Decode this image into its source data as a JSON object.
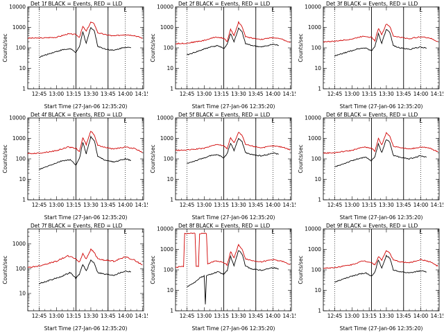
{
  "chart_data": [
    {
      "type": "line",
      "title": "Det 1f BLACK = Events, RED = LLD",
      "ylabel": "Counts/sec",
      "xlabel": "Start Time (27-Jan-06 12:35:20)",
      "marker": "L",
      "x_ticks": [
        "12:45",
        "13:00",
        "13:15",
        "13:30",
        "13:45",
        "14:00",
        "14:15"
      ],
      "y_ticks": [
        "1",
        "10",
        "100",
        "1000",
        "10000"
      ],
      "yscale": "log",
      "ylim": [
        1,
        10000
      ],
      "xlim": [
        "12:35",
        "14:16"
      ],
      "dotted_lines": [
        "12:45",
        "14:00"
      ],
      "solid_lines": [
        "13:17",
        "13:45"
      ],
      "series": [
        {
          "name": "RED",
          "color": "#d00000",
          "x": [
            "12:35",
            "12:45",
            "13:00",
            "13:10",
            "13:17",
            "13:20",
            "13:23",
            "13:26",
            "13:30",
            "13:33",
            "13:36",
            "13:42",
            "13:50",
            "14:00",
            "14:08",
            "14:15"
          ],
          "values": [
            300,
            300,
            330,
            480,
            450,
            330,
            1100,
            650,
            1800,
            1500,
            550,
            450,
            380,
            450,
            400,
            300
          ]
        },
        {
          "name": "BLACK",
          "color": "#000000",
          "x": [
            "12:45",
            "12:55",
            "13:05",
            "13:12",
            "13:17",
            "13:20",
            "13:23",
            "13:26",
            "13:30",
            "13:33",
            "13:36",
            "13:42",
            "13:50",
            "14:00",
            "14:05"
          ],
          "values": [
            35,
            55,
            80,
            90,
            60,
            110,
            600,
            170,
            1000,
            700,
            120,
            90,
            75,
            110,
            100
          ]
        }
      ]
    },
    {
      "type": "line",
      "title": "Det 2f BLACK = Events, RED = LLD",
      "ylabel": "Counts/sec",
      "xlabel": "Start Time (27-Jan-06 12:35:20)",
      "marker": "L",
      "x_ticks": [
        "12:45",
        "13:00",
        "13:15",
        "13:30",
        "13:45",
        "14:00",
        "14:15"
      ],
      "y_ticks": [
        "1",
        "10",
        "100",
        "1000",
        "10000"
      ],
      "yscale": "log",
      "ylim": [
        1,
        10000
      ],
      "xlim": [
        "12:35",
        "14:16"
      ],
      "dotted_lines": [
        "12:45",
        "14:00"
      ],
      "solid_lines": [
        "13:17",
        "13:45"
      ],
      "series": [
        {
          "name": "RED",
          "color": "#d00000",
          "x": [
            "12:35",
            "12:45",
            "13:00",
            "13:10",
            "13:17",
            "13:20",
            "13:23",
            "13:26",
            "13:30",
            "13:33",
            "13:36",
            "13:42",
            "13:50",
            "14:00",
            "14:08",
            "14:15"
          ],
          "values": [
            160,
            170,
            230,
            340,
            300,
            200,
            800,
            400,
            1800,
            1100,
            350,
            300,
            260,
            320,
            260,
            180
          ]
        },
        {
          "name": "BLACK",
          "color": "#000000",
          "x": [
            "12:45",
            "12:55",
            "13:05",
            "13:12",
            "13:17",
            "13:20",
            "13:23",
            "13:26",
            "13:30",
            "13:33",
            "13:36",
            "13:42",
            "13:50",
            "14:00",
            "14:05"
          ],
          "values": [
            45,
            70,
            110,
            130,
            90,
            150,
            500,
            200,
            900,
            600,
            160,
            130,
            110,
            150,
            130
          ]
        }
      ]
    },
    {
      "type": "line",
      "title": "Det 3f BLACK = Events, RED = LLD",
      "ylabel": "Counts/sec",
      "xlabel": "Start Time (27-Jan-06 12:35:20)",
      "marker": "L",
      "x_ticks": [
        "12:45",
        "13:00",
        "13:15",
        "13:30",
        "13:45",
        "14:00",
        "14:15"
      ],
      "y_ticks": [
        "1",
        "10",
        "100",
        "1000",
        "10000"
      ],
      "yscale": "log",
      "ylim": [
        1,
        10000
      ],
      "xlim": [
        "12:35",
        "14:16"
      ],
      "dotted_lines": [
        "12:45",
        "14:00"
      ],
      "solid_lines": [
        "13:17",
        "13:45"
      ],
      "series": [
        {
          "name": "RED",
          "color": "#d00000",
          "x": [
            "12:35",
            "12:45",
            "13:00",
            "13:10",
            "13:17",
            "13:20",
            "13:23",
            "13:26",
            "13:30",
            "13:33",
            "13:36",
            "13:42",
            "13:50",
            "14:00",
            "14:08",
            "14:15"
          ],
          "values": [
            200,
            210,
            270,
            380,
            330,
            220,
            900,
            450,
            1500,
            1100,
            380,
            330,
            280,
            350,
            300,
            200
          ]
        },
        {
          "name": "BLACK",
          "color": "#000000",
          "x": [
            "12:45",
            "12:55",
            "13:05",
            "13:12",
            "13:17",
            "13:20",
            "13:23",
            "13:26",
            "13:30",
            "13:33",
            "13:36",
            "13:42",
            "13:50",
            "14:00",
            "14:05"
          ],
          "values": [
            40,
            60,
            90,
            100,
            70,
            120,
            500,
            170,
            800,
            550,
            130,
            100,
            85,
            110,
            95
          ]
        }
      ]
    },
    {
      "type": "line",
      "title": "Det 4f BLACK = Events, RED = LLD",
      "ylabel": "Counts/sec",
      "xlabel": "Start Time (27-Jan-06 12:35:20)",
      "marker": "L",
      "x_ticks": [
        "12:45",
        "13:00",
        "13:15",
        "13:30",
        "13:45",
        "14:00",
        "14:15"
      ],
      "y_ticks": [
        "1",
        "10",
        "100",
        "1000",
        "10000"
      ],
      "yscale": "log",
      "ylim": [
        1,
        10000
      ],
      "xlim": [
        "12:35",
        "14:16"
      ],
      "dotted_lines": [
        "12:45",
        "14:00"
      ],
      "solid_lines": [
        "13:17",
        "13:45"
      ],
      "series": [
        {
          "name": "RED",
          "color": "#d00000",
          "x": [
            "12:35",
            "12:45",
            "13:00",
            "13:10",
            "13:17",
            "13:20",
            "13:23",
            "13:26",
            "13:30",
            "13:33",
            "13:36",
            "13:42",
            "13:50",
            "14:00",
            "14:08",
            "14:15"
          ],
          "values": [
            180,
            190,
            250,
            380,
            330,
            220,
            1100,
            500,
            2300,
            1500,
            450,
            380,
            300,
            380,
            320,
            210
          ]
        },
        {
          "name": "BLACK",
          "color": "#000000",
          "x": [
            "12:45",
            "12:55",
            "13:05",
            "13:12",
            "13:17",
            "13:20",
            "13:23",
            "13:26",
            "13:30",
            "13:33",
            "13:36",
            "13:42",
            "13:50",
            "14:00",
            "14:05"
          ],
          "values": [
            30,
            50,
            80,
            90,
            50,
            100,
            650,
            180,
            1200,
            800,
            130,
            90,
            70,
            100,
            85
          ]
        }
      ]
    },
    {
      "type": "line",
      "title": "Det 5f BLACK = Events, RED = LLD",
      "ylabel": "Counts/sec",
      "xlabel": "Start Time (27-Jan-06 12:35:20)",
      "marker": "L",
      "x_ticks": [
        "12:45",
        "13:00",
        "13:15",
        "13:30",
        "13:45",
        "14:00",
        "14:15"
      ],
      "y_ticks": [
        "1",
        "10",
        "100",
        "1000",
        "10000"
      ],
      "yscale": "log",
      "ylim": [
        1,
        10000
      ],
      "xlim": [
        "12:35",
        "14:16"
      ],
      "dotted_lines": [
        "12:45",
        "14:00"
      ],
      "solid_lines": [
        "13:17",
        "13:45"
      ],
      "series": [
        {
          "name": "RED",
          "color": "#d00000",
          "x": [
            "12:35",
            "12:45",
            "13:00",
            "13:10",
            "13:17",
            "13:20",
            "13:23",
            "13:26",
            "13:30",
            "13:33",
            "13:36",
            "13:42",
            "13:50",
            "14:00",
            "14:08",
            "14:15"
          ],
          "values": [
            260,
            270,
            330,
            500,
            450,
            320,
            1100,
            600,
            2000,
            1400,
            500,
            420,
            350,
            430,
            380,
            280
          ]
        },
        {
          "name": "BLACK",
          "color": "#000000",
          "x": [
            "12:45",
            "12:55",
            "13:05",
            "13:12",
            "13:17",
            "13:20",
            "13:23",
            "13:26",
            "13:30",
            "13:33",
            "13:36",
            "13:42",
            "13:50",
            "14:00",
            "14:05"
          ],
          "values": [
            60,
            90,
            140,
            160,
            110,
            180,
            600,
            260,
            1000,
            700,
            200,
            160,
            140,
            190,
            170
          ]
        }
      ]
    },
    {
      "type": "line",
      "title": "Det 6f BLACK = Events, RED = LLD",
      "ylabel": "Counts/sec",
      "xlabel": "Start Time (27-Jan-06 12:35:20)",
      "marker": "L",
      "x_ticks": [
        "12:45",
        "13:00",
        "13:15",
        "13:30",
        "13:45",
        "14:00",
        "14:15"
      ],
      "y_ticks": [
        "1",
        "10",
        "100",
        "1000",
        "10000"
      ],
      "yscale": "log",
      "ylim": [
        1,
        10000
      ],
      "xlim": [
        "12:35",
        "14:16"
      ],
      "dotted_lines": [
        "12:45",
        "14:00"
      ],
      "solid_lines": [
        "13:17",
        "13:45"
      ],
      "series": [
        {
          "name": "RED",
          "color": "#d00000",
          "x": [
            "12:35",
            "12:45",
            "13:00",
            "13:10",
            "13:17",
            "13:20",
            "13:23",
            "13:26",
            "13:30",
            "13:33",
            "13:36",
            "13:42",
            "13:50",
            "14:00",
            "14:08",
            "14:15"
          ],
          "values": [
            190,
            200,
            260,
            380,
            340,
            230,
            1000,
            480,
            1900,
            1300,
            420,
            360,
            300,
            380,
            330,
            220
          ]
        },
        {
          "name": "BLACK",
          "color": "#000000",
          "x": [
            "12:45",
            "12:55",
            "13:05",
            "13:12",
            "13:17",
            "13:20",
            "13:23",
            "13:26",
            "13:30",
            "13:33",
            "13:36",
            "13:42",
            "13:50",
            "14:00",
            "14:05"
          ],
          "values": [
            40,
            65,
            100,
            120,
            80,
            130,
            550,
            200,
            900,
            650,
            150,
            120,
            100,
            140,
            120
          ]
        }
      ]
    },
    {
      "type": "line",
      "title": "Det 7f BLACK = Events, RED = LLD",
      "ylabel": "Counts/sec",
      "xlabel": "Start Time (27-Jan-06 12:35:20)",
      "marker": "L",
      "x_ticks": [
        "12:45",
        "13:00",
        "13:15",
        "13:30",
        "13:45",
        "14:00",
        "14:15"
      ],
      "y_ticks": [
        "10",
        "100",
        "1000"
      ],
      "yscale": "log",
      "ylim": [
        2,
        4000
      ],
      "xlim": [
        "12:35",
        "14:16"
      ],
      "dotted_lines": [
        "12:45",
        "14:00"
      ],
      "solid_lines": [
        "13:17",
        "13:45"
      ],
      "series": [
        {
          "name": "RED",
          "color": "#d00000",
          "x": [
            "12:35",
            "12:45",
            "13:00",
            "13:10",
            "13:17",
            "13:20",
            "13:23",
            "13:26",
            "13:30",
            "13:33",
            "13:36",
            "13:42",
            "13:50",
            "14:00",
            "14:08",
            "14:15"
          ],
          "values": [
            110,
            130,
            200,
            330,
            250,
            180,
            400,
            250,
            600,
            450,
            250,
            220,
            200,
            300,
            220,
            140
          ]
        },
        {
          "name": "BLACK",
          "color": "#000000",
          "x": [
            "12:45",
            "12:55",
            "13:05",
            "13:12",
            "13:17",
            "13:20",
            "13:23",
            "13:26",
            "13:30",
            "13:33",
            "13:36",
            "13:42",
            "13:50",
            "14:00",
            "14:05"
          ],
          "values": [
            25,
            35,
            50,
            70,
            40,
            60,
            150,
            80,
            220,
            170,
            70,
            60,
            55,
            80,
            75
          ]
        }
      ]
    },
    {
      "type": "line",
      "title": "Det 8f BLACK = Events, RED = LLD",
      "ylabel": "Counts/sec",
      "xlabel": "Start Time (27-Jan-06 12:35:20)",
      "marker": "L",
      "x_ticks": [
        "12:45",
        "13:00",
        "13:15",
        "13:30",
        "13:45",
        "14:00",
        "14:15"
      ],
      "y_ticks": [
        "1",
        "10",
        "100",
        "1000",
        "10000"
      ],
      "yscale": "log",
      "ylim": [
        1,
        10000
      ],
      "xlim": [
        "12:35",
        "14:16"
      ],
      "dotted_lines": [
        "12:45",
        "14:00"
      ],
      "solid_lines": [
        "13:17",
        "13:45"
      ],
      "series": [
        {
          "name": "RED",
          "color": "#d00000",
          "x": [
            "12:35",
            "12:42",
            "12:43",
            "12:52",
            "12:53",
            "12:55",
            "12:56",
            "13:02",
            "13:03",
            "13:10",
            "13:17",
            "13:20",
            "13:23",
            "13:26",
            "13:30",
            "13:33",
            "13:36",
            "13:42",
            "13:50",
            "14:00",
            "14:08",
            "14:15"
          ],
          "values": [
            130,
            150,
            6000,
            6000,
            150,
            150,
            6000,
            6000,
            200,
            280,
            230,
            170,
            800,
            380,
            1700,
            1000,
            350,
            280,
            250,
            320,
            260,
            180
          ]
        },
        {
          "name": "BLACK",
          "color": "#000000",
          "x": [
            "12:45",
            "12:52",
            "12:56",
            "13:00",
            "13:01",
            "13:02",
            "13:05",
            "13:12",
            "13:17",
            "13:20",
            "13:23",
            "13:26",
            "13:30",
            "13:33",
            "13:36",
            "13:42",
            "13:50",
            "14:00",
            "14:05"
          ],
          "values": [
            15,
            25,
            40,
            50,
            2,
            50,
            60,
            80,
            60,
            90,
            450,
            160,
            900,
            600,
            150,
            110,
            95,
            130,
            110
          ]
        }
      ]
    },
    {
      "type": "line",
      "title": "Det 9f BLACK = Events, RED = LLD",
      "ylabel": "Counts/sec",
      "xlabel": "Start Time (27-Jan-06 12:35:20)",
      "marker": "L",
      "x_ticks": [
        "12:45",
        "13:00",
        "13:15",
        "13:30",
        "13:45",
        "14:00",
        "14:15"
      ],
      "y_ticks": [
        "1",
        "10",
        "100",
        "1000",
        "10000"
      ],
      "yscale": "log",
      "ylim": [
        1,
        10000
      ],
      "xlim": [
        "12:35",
        "14:16"
      ],
      "dotted_lines": [
        "12:45",
        "14:00"
      ],
      "solid_lines": [
        "13:17",
        "13:45"
      ],
      "series": [
        {
          "name": "RED",
          "color": "#d00000",
          "x": [
            "12:35",
            "12:45",
            "13:00",
            "13:10",
            "13:17",
            "13:20",
            "13:23",
            "13:26",
            "13:30",
            "13:33",
            "13:36",
            "13:42",
            "13:50",
            "14:00",
            "14:08",
            "14:15"
          ],
          "values": [
            120,
            130,
            180,
            280,
            230,
            170,
            450,
            300,
            900,
            650,
            300,
            250,
            220,
            320,
            250,
            150
          ]
        },
        {
          "name": "BLACK",
          "color": "#000000",
          "x": [
            "12:45",
            "12:55",
            "13:05",
            "13:12",
            "13:17",
            "13:20",
            "13:23",
            "13:26",
            "13:30",
            "13:33",
            "13:36",
            "13:42",
            "13:50",
            "14:00",
            "14:05"
          ],
          "values": [
            25,
            40,
            60,
            70,
            50,
            80,
            300,
            120,
            500,
            380,
            100,
            80,
            70,
            90,
            80
          ]
        }
      ]
    }
  ]
}
